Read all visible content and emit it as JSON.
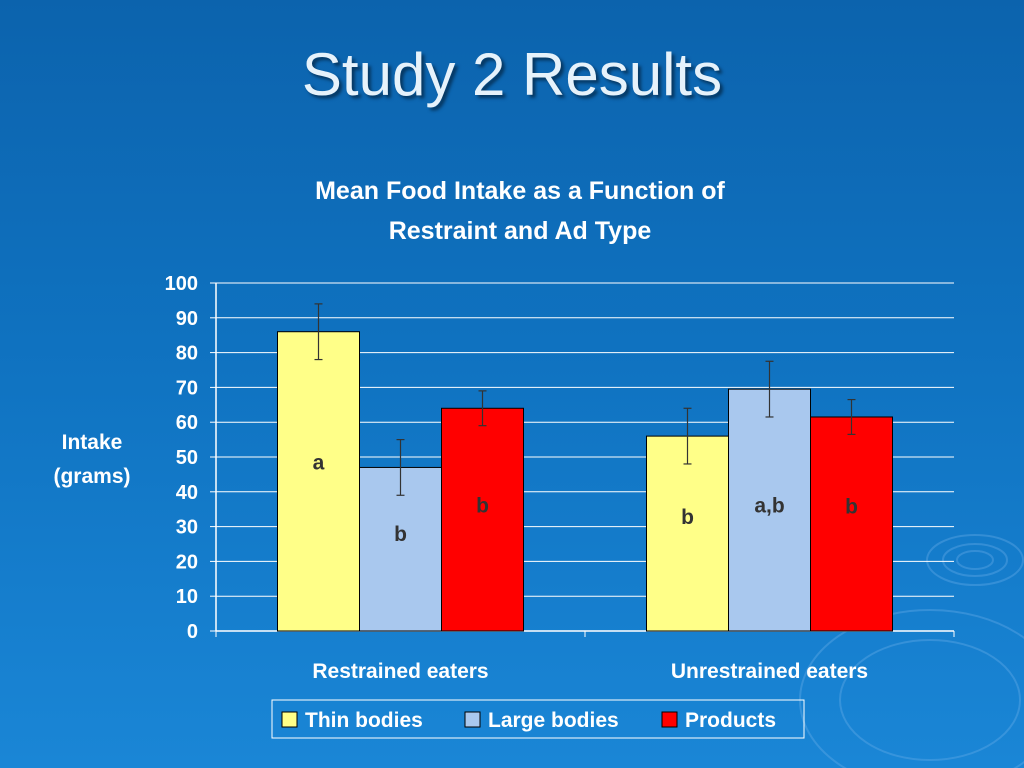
{
  "slide": {
    "title": "Study 2 Results"
  },
  "chart_data": {
    "type": "bar",
    "title_lines": [
      "Mean Food Intake as a Function of",
      "Restraint and Ad Type"
    ],
    "ylabel_lines": [
      "Intake",
      "(grams)"
    ],
    "xlabel": "",
    "ylim": [
      0,
      100
    ],
    "yticks": [
      0,
      10,
      20,
      30,
      40,
      50,
      60,
      70,
      80,
      90,
      100
    ],
    "grid": true,
    "legend_position": "bottom",
    "categories": [
      "Restrained eaters",
      "Unrestrained eaters"
    ],
    "series": [
      {
        "name": "Thin bodies",
        "color": "#ffff88",
        "values": [
          86,
          56
        ],
        "errors": [
          8,
          8
        ],
        "labels": [
          "a",
          "b"
        ]
      },
      {
        "name": "Large bodies",
        "color": "#a9c8ee",
        "values": [
          47,
          69.5
        ],
        "errors": [
          8,
          8
        ],
        "labels": [
          "b",
          "a,b"
        ]
      },
      {
        "name": "Products",
        "color": "#ff0000",
        "values": [
          64,
          61.5
        ],
        "errors": [
          5,
          5
        ],
        "labels": [
          "b",
          "b"
        ]
      }
    ]
  }
}
